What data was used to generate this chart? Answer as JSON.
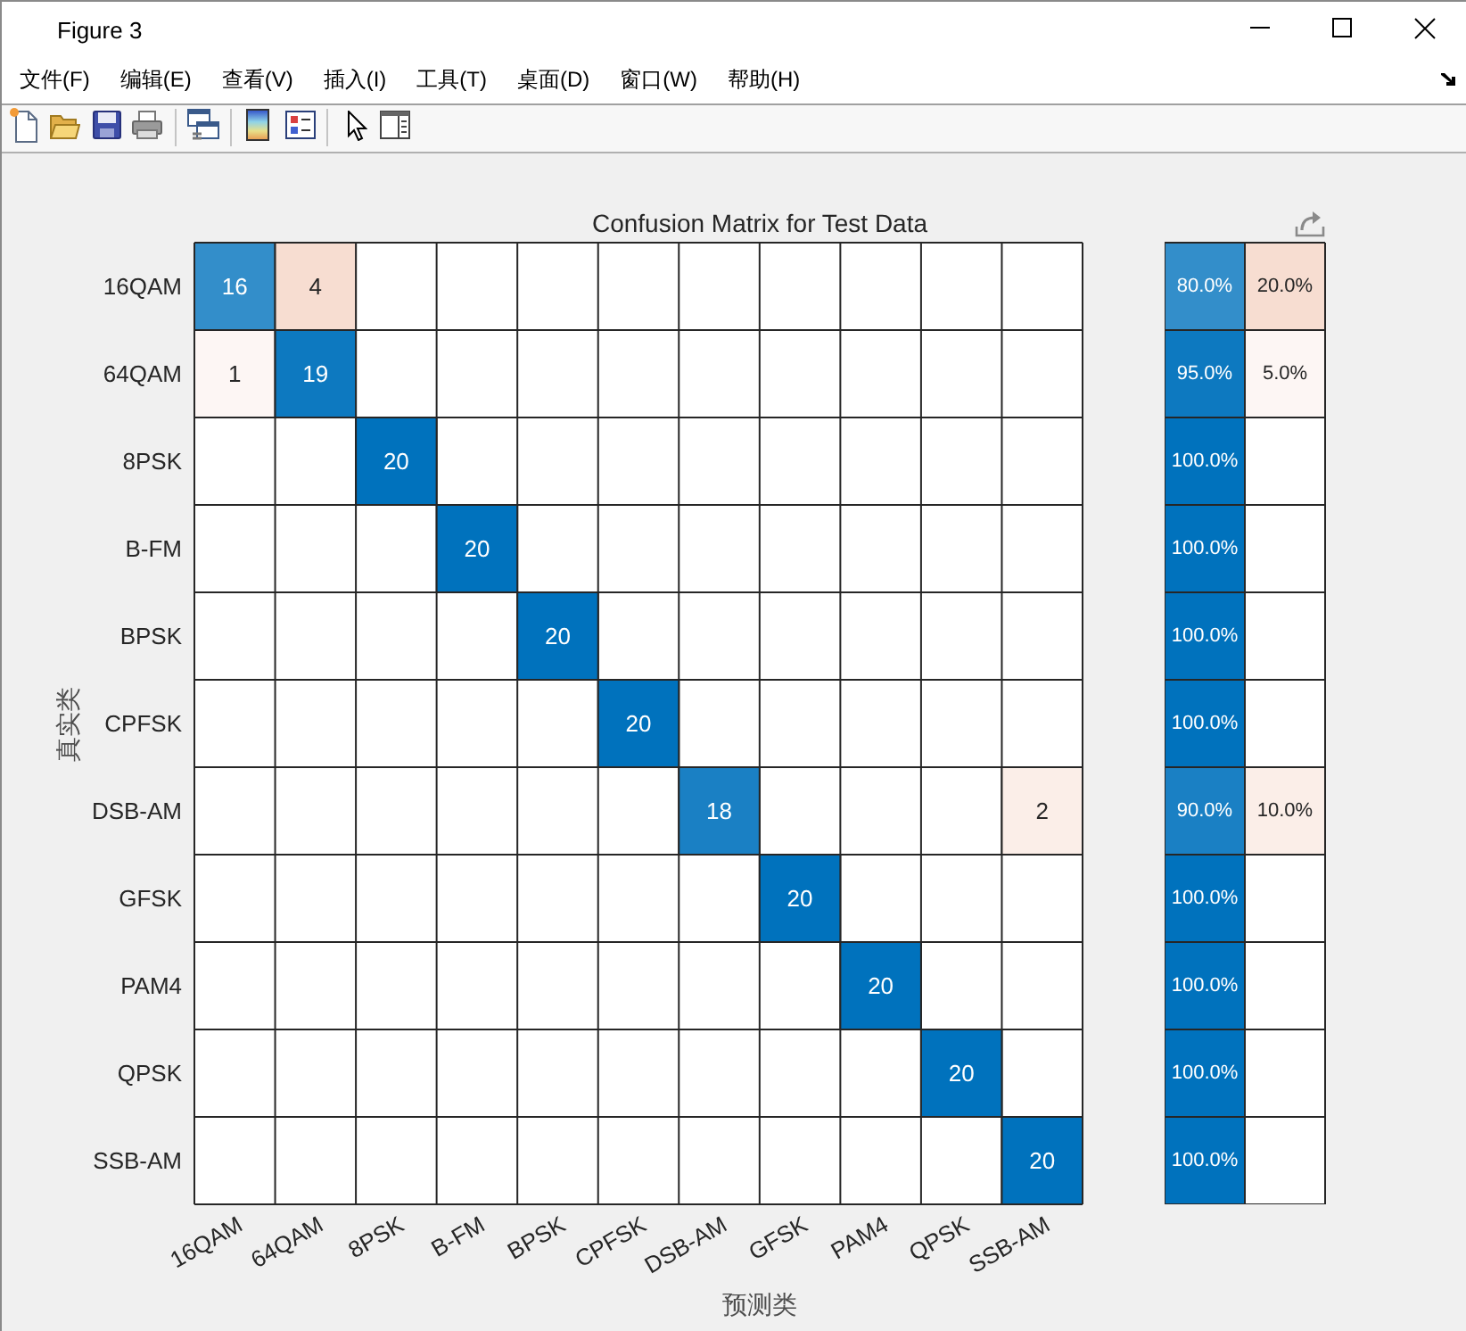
{
  "chart_data": [
    {
      "type": "heatmap",
      "title": "Confusion Matrix for Test Data",
      "xlabel": "预测类",
      "ylabel": "真实类",
      "categories": [
        "16QAM",
        "64QAM",
        "8PSK",
        "B-FM",
        "BPSK",
        "CPFSK",
        "DSB-AM",
        "GFSK",
        "PAM4",
        "QPSK",
        "SSB-AM"
      ],
      "y_categories": [
        "16QAM",
        "64QAM",
        "8PSK",
        "B-FM",
        "BPSK",
        "CPFSK",
        "DSB-AM",
        "GFSK",
        "PAM4",
        "QPSK",
        "SSB-AM"
      ],
      "cells": [
        [
          16,
          4,
          null,
          null,
          null,
          null,
          null,
          null,
          null,
          null,
          null
        ],
        [
          1,
          19,
          null,
          null,
          null,
          null,
          null,
          null,
          null,
          null,
          null
        ],
        [
          null,
          null,
          20,
          null,
          null,
          null,
          null,
          null,
          null,
          null,
          null
        ],
        [
          null,
          null,
          null,
          20,
          null,
          null,
          null,
          null,
          null,
          null,
          null
        ],
        [
          null,
          null,
          null,
          null,
          20,
          null,
          null,
          null,
          null,
          null,
          null
        ],
        [
          null,
          null,
          null,
          null,
          null,
          20,
          null,
          null,
          null,
          null,
          null
        ],
        [
          null,
          null,
          null,
          null,
          null,
          null,
          18,
          null,
          null,
          null,
          2
        ],
        [
          null,
          null,
          null,
          null,
          null,
          null,
          null,
          20,
          null,
          null,
          null
        ],
        [
          null,
          null,
          null,
          null,
          null,
          null,
          null,
          null,
          20,
          null,
          null
        ],
        [
          null,
          null,
          null,
          null,
          null,
          null,
          null,
          null,
          null,
          20,
          null
        ],
        [
          null,
          null,
          null,
          null,
          null,
          null,
          null,
          null,
          null,
          null,
          20
        ]
      ],
      "data_labels": true,
      "annotations": [
        "Figure 3",
        "文件(F)",
        "编辑(E)",
        "查看(V)",
        "插入(I)",
        "工具(T)",
        "桌面(D)",
        "窗口(W)",
        "帮助(H)"
      ]
    },
    {
      "type": "heatmap",
      "categories": [
        null,
        null
      ],
      "y_categories": [
        null,
        null,
        null,
        null,
        null,
        null,
        null,
        null,
        null,
        null,
        null
      ],
      "cells": [
        [
          80,
          20
        ],
        [
          95,
          5
        ],
        [
          100,
          null
        ],
        [
          100,
          null
        ],
        [
          100,
          null
        ],
        [
          100,
          null
        ],
        [
          90,
          10
        ],
        [
          100,
          null
        ],
        [
          100,
          null
        ],
        [
          100,
          null
        ],
        [
          100,
          null
        ]
      ],
      "cell_labels": [
        [
          "80.0%",
          "20.0%"
        ],
        [
          "95.0%",
          "5.0%"
        ],
        [
          "100.0%",
          null
        ],
        [
          "100.0%",
          null
        ],
        [
          "100.0%",
          null
        ],
        [
          "100.0%",
          null
        ],
        [
          "90.0%",
          "10.0%"
        ],
        [
          "100.0%",
          null
        ],
        [
          "100.0%",
          null
        ],
        [
          "100.0%",
          null
        ],
        [
          "100.0%",
          null
        ]
      ],
      "tick_labels": false
    }
  ]
}
